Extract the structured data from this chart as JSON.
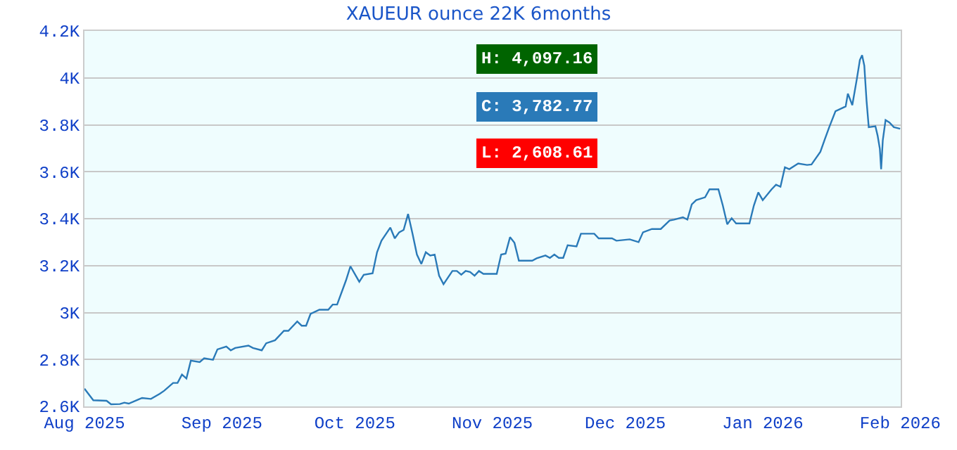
{
  "chart_data": {
    "type": "line",
    "title": "XAUEUR ounce 22K 6months",
    "x": [
      "2025-08-01",
      "2025-08-03",
      "2025-08-06",
      "2025-08-07",
      "2025-08-09",
      "2025-08-10",
      "2025-08-11",
      "2025-08-13",
      "2025-08-14",
      "2025-08-16",
      "2025-08-18",
      "2025-08-19",
      "2025-08-21",
      "2025-08-22",
      "2025-08-23",
      "2025-08-24",
      "2025-08-25",
      "2025-08-27",
      "2025-08-28",
      "2025-08-30",
      "2025-08-31",
      "2025-09-02",
      "2025-09-03",
      "2025-09-04",
      "2025-09-07",
      "2025-09-08",
      "2025-09-10",
      "2025-09-11",
      "2025-09-13",
      "2025-09-15",
      "2025-09-16",
      "2025-09-18",
      "2025-09-19",
      "2025-09-20",
      "2025-09-21",
      "2025-09-23",
      "2025-09-25",
      "2025-09-26",
      "2025-09-27",
      "2025-09-29",
      "2025-09-30",
      "2025-10-02",
      "2025-10-03",
      "2025-10-05",
      "2025-10-06",
      "2025-10-07",
      "2025-10-09",
      "2025-10-10",
      "2025-10-11",
      "2025-10-12",
      "2025-10-13",
      "2025-10-14",
      "2025-10-15",
      "2025-10-16",
      "2025-10-17",
      "2025-10-18",
      "2025-10-19",
      "2025-10-20",
      "2025-10-21",
      "2025-10-23",
      "2025-10-24",
      "2025-10-25",
      "2025-10-26",
      "2025-10-27",
      "2025-10-28",
      "2025-10-29",
      "2025-10-30",
      "2025-11-02",
      "2025-11-03",
      "2025-11-04",
      "2025-11-05",
      "2025-11-06",
      "2025-11-07",
      "2025-11-10",
      "2025-11-11",
      "2025-11-13",
      "2025-11-14",
      "2025-11-15",
      "2025-11-16",
      "2025-11-17",
      "2025-11-18",
      "2025-11-20",
      "2025-11-21",
      "2025-11-24",
      "2025-11-25",
      "2025-11-28",
      "2025-11-29",
      "2025-12-02",
      "2025-12-04",
      "2025-12-05",
      "2025-12-07",
      "2025-12-09",
      "2025-12-11",
      "2025-12-12",
      "2025-12-14",
      "2025-12-15",
      "2025-12-16",
      "2025-12-17",
      "2025-12-19",
      "2025-12-20",
      "2025-12-22",
      "2025-12-23",
      "2025-12-24",
      "2025-12-25",
      "2025-12-26",
      "2025-12-29",
      "2025-12-30",
      "2025-12-31",
      "2026-01-01",
      "2026-01-03",
      "2026-01-04",
      "2026-01-05",
      "2026-01-06",
      "2026-01-07",
      "2026-01-09",
      "2026-01-11",
      "2026-01-12",
      "2026-01-14",
      "2026-01-15",
      "2026-01-16",
      "2026-01-17T10:00",
      "2026-01-19T17:00",
      "2026-01-20T05:00",
      "2026-01-21T05:00",
      "2026-01-22T05:00",
      "2026-01-22T22:00",
      "2026-01-23T10:00",
      "2026-01-23T22:00",
      "2026-01-24T10:00",
      "2026-01-24T22:00",
      "2026-01-26T10:00",
      "2026-01-26T22:00",
      "2026-01-27T10:00",
      "2026-01-27T17:00",
      "2026-01-28T02:00",
      "2026-01-28T17:00",
      "2026-01-29T14:00",
      "2026-01-30T14:00",
      "2026-02-01T00:00"
    ],
    "series": [
      {
        "color": "#2a7ab8",
        "values": [
          2676,
          2626,
          2624,
          2609,
          2610,
          2616,
          2612,
          2628,
          2636,
          2632,
          2654,
          2667,
          2700,
          2700,
          2736,
          2719,
          2795,
          2789,
          2805,
          2799,
          2843,
          2855,
          2839,
          2849,
          2859,
          2849,
          2839,
          2869,
          2882,
          2922,
          2922,
          2962,
          2944,
          2944,
          2994,
          3012,
          3012,
          3034,
          3034,
          3137,
          3197,
          3131,
          3161,
          3167,
          3257,
          3306,
          3362,
          3316,
          3342,
          3352,
          3420,
          3336,
          3247,
          3207,
          3257,
          3243,
          3247,
          3157,
          3121,
          3177,
          3177,
          3161,
          3177,
          3173,
          3157,
          3177,
          3165,
          3165,
          3247,
          3251,
          3321,
          3297,
          3221,
          3221,
          3231,
          3243,
          3233,
          3247,
          3233,
          3233,
          3287,
          3282,
          3336,
          3336,
          3316,
          3316,
          3306,
          3312,
          3300,
          3342,
          3356,
          3356,
          3392,
          3396,
          3406,
          3396,
          3461,
          3479,
          3491,
          3525,
          3525,
          3456,
          3376,
          3402,
          3380,
          3380,
          3456,
          3512,
          3479,
          3525,
          3545,
          3536,
          3619,
          3611,
          3635,
          3629,
          3631,
          3685,
          3738,
          3790,
          3858,
          3878,
          3933,
          3884,
          3993,
          4076,
          4097,
          4052,
          3903,
          3790,
          3794,
          3754,
          3698,
          3611,
          3734,
          3820,
          3810,
          3790,
          3783
        ]
      }
    ],
    "xlim": [
      "2025-08-01",
      "2026-02-01T03:00"
    ],
    "xticks": [
      {
        "value": "2025-08-01",
        "label": "Aug 2025"
      },
      {
        "value": "2025-09-01",
        "label": "Sep 2025"
      },
      {
        "value": "2025-10-01",
        "label": "Oct 2025"
      },
      {
        "value": "2025-11-01",
        "label": "Nov 2025"
      },
      {
        "value": "2025-12-01",
        "label": "Dec 2025"
      },
      {
        "value": "2026-01-01",
        "label": "Jan 2026"
      },
      {
        "value": "2026-02-01",
        "label": "Feb 2026"
      }
    ],
    "ylim": [
      2600,
      4200
    ],
    "yticks": [
      {
        "value": 2600,
        "label": "2.6K"
      },
      {
        "value": 2800,
        "label": "2.8K"
      },
      {
        "value": 3000,
        "label": "3K"
      },
      {
        "value": 3200,
        "label": "3.2K"
      },
      {
        "value": 3400,
        "label": "3.4K"
      },
      {
        "value": 3600,
        "label": "3.6K"
      },
      {
        "value": 3800,
        "label": "3.8K"
      },
      {
        "value": 4000,
        "label": "4K"
      },
      {
        "value": 4200,
        "label": "4.2K"
      }
    ],
    "grid": "y",
    "legend": false,
    "marker": "none",
    "line_style": "solid",
    "annotations": [
      "H: 4,097.16",
      "C: 3,782.77",
      "L: 2,608.61"
    ]
  }
}
